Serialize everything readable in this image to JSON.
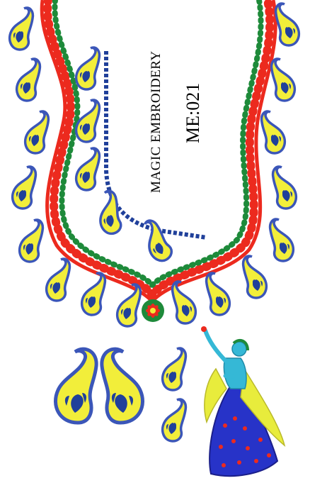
{
  "design": {
    "brand": "MAGIC EMBROIDERY",
    "code": "ME:021"
  },
  "colors": {
    "paisley_fill": "#f2ee3a",
    "paisley_outline": "#3b56b8",
    "motif_blue": "#20409a",
    "red": "#ec2a1e",
    "green": "#1e8a3a",
    "dancer_skirt": "#2733c8",
    "dancer_dupatta": "#e8ec3c",
    "dancer_skin": "#35b8d6"
  }
}
